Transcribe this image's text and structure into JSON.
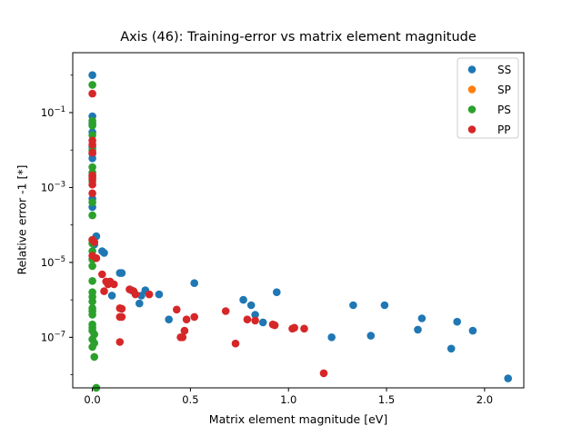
{
  "chart_data": {
    "type": "scatter",
    "title": "Axis (46): Training-error vs matrix element magnitude",
    "xlabel": "Matrix element magnitude [eV]",
    "ylabel": "Relative error -1 [*]",
    "xlim": [
      -0.1,
      2.2
    ],
    "ylim_log10": [
      -8.35,
      0.6
    ],
    "yscale": "log",
    "xticks": [
      0.0,
      0.5,
      1.0,
      1.5,
      2.0
    ],
    "xtick_labels": [
      "0.0",
      "0.5",
      "1.0",
      "1.5",
      "2.0"
    ],
    "yticks_log10": [
      -1,
      -3,
      -5,
      -7
    ],
    "ytick_labels": [
      {
        "base": "10",
        "exp": "−1"
      },
      {
        "base": "10",
        "exp": "−3"
      },
      {
        "base": "10",
        "exp": "−5"
      },
      {
        "base": "10",
        "exp": "−7"
      }
    ],
    "grid": false,
    "legend_position": "top-right",
    "series": [
      {
        "name": "SS",
        "color": "#1f77b4",
        "points": [
          [
            0.0,
            1.0
          ],
          [
            0.0,
            0.08
          ],
          [
            0.0,
            0.05
          ],
          [
            0.0,
            0.03
          ],
          [
            0.0,
            0.012
          ],
          [
            0.0,
            0.008
          ],
          [
            0.0,
            0.006
          ],
          [
            0.0,
            0.002
          ],
          [
            0.0,
            0.0005
          ],
          [
            0.0,
            0.0003
          ],
          [
            0.02,
            5e-05
          ],
          [
            0.01,
            3e-05
          ],
          [
            0.05,
            2e-05
          ],
          [
            0.06,
            1.8e-05
          ],
          [
            0.1,
            1.3e-06
          ],
          [
            0.14,
            5.2e-06
          ],
          [
            0.15,
            5.2e-06
          ],
          [
            0.2,
            1.8e-06
          ],
          [
            0.24,
            8e-07
          ],
          [
            0.25,
            1.3e-06
          ],
          [
            0.27,
            1.8e-06
          ],
          [
            0.34,
            1.4e-06
          ],
          [
            0.39,
            3e-07
          ],
          [
            0.52,
            2.8e-06
          ],
          [
            0.77,
            1e-06
          ],
          [
            0.81,
            7.2e-07
          ],
          [
            0.83,
            4e-07
          ],
          [
            0.87,
            2.5e-07
          ],
          [
            0.94,
            1.6e-06
          ],
          [
            1.22,
            1e-07
          ],
          [
            1.33,
            7.2e-07
          ],
          [
            1.42,
            1.1e-07
          ],
          [
            1.49,
            7.2e-07
          ],
          [
            1.66,
            1.6e-07
          ],
          [
            1.68,
            3.2e-07
          ],
          [
            1.83,
            5e-08
          ],
          [
            1.86,
            2.6e-07
          ],
          [
            1.94,
            1.5e-07
          ],
          [
            2.12,
            8e-09
          ]
        ]
      },
      {
        "name": "SP",
        "color": "#ff7f0e",
        "points": []
      },
      {
        "name": "PS",
        "color": "#2ca02c",
        "points": [
          [
            0.0,
            0.55
          ],
          [
            0.0,
            0.06
          ],
          [
            0.0,
            0.045
          ],
          [
            0.0,
            0.025
          ],
          [
            0.0,
            0.01
          ],
          [
            0.0,
            0.0035
          ],
          [
            0.0,
            0.0025
          ],
          [
            0.0,
            0.0015
          ],
          [
            0.0,
            0.0004
          ],
          [
            0.0,
            0.00018
          ],
          [
            0.0,
            4e-05
          ],
          [
            0.0,
            3.2e-05
          ],
          [
            0.0,
            2e-05
          ],
          [
            0.0,
            1.2e-05
          ],
          [
            0.0,
            8e-06
          ],
          [
            0.0,
            3.2e-06
          ],
          [
            0.0,
            1.6e-06
          ],
          [
            0.0,
            1.2e-06
          ],
          [
            0.0,
            9e-07
          ],
          [
            0.0,
            6e-07
          ],
          [
            0.0,
            5e-07
          ],
          [
            0.0,
            4e-07
          ],
          [
            0.0,
            2.2e-07
          ],
          [
            0.0,
            1.8e-07
          ],
          [
            0.0,
            1.5e-07
          ],
          [
            0.01,
            1.2e-07
          ],
          [
            0.0,
            8.8e-08
          ],
          [
            0.01,
            7e-08
          ],
          [
            0.0,
            5.5e-08
          ],
          [
            0.01,
            3e-08
          ],
          [
            0.02,
            4.5e-09
          ]
        ]
      },
      {
        "name": "PP",
        "color": "#d62728",
        "points": [
          [
            0.0,
            0.32
          ],
          [
            0.0,
            0.018
          ],
          [
            0.0,
            0.014
          ],
          [
            0.0,
            0.0085
          ],
          [
            0.0,
            0.0021
          ],
          [
            0.0,
            0.0017
          ],
          [
            0.0,
            0.0012
          ],
          [
            0.0,
            0.0007
          ],
          [
            0.0,
            4e-05
          ],
          [
            0.01,
            3.5e-05
          ],
          [
            0.0,
            1.5e-05
          ],
          [
            0.02,
            1.3e-05
          ],
          [
            0.05,
            4.8e-06
          ],
          [
            0.07,
            3.1e-06
          ],
          [
            0.08,
            2.6e-06
          ],
          [
            0.09,
            3.1e-06
          ],
          [
            0.06,
            1.7e-06
          ],
          [
            0.11,
            2.6e-06
          ],
          [
            0.14,
            6e-07
          ],
          [
            0.15,
            5.8e-07
          ],
          [
            0.15,
            3.5e-07
          ],
          [
            0.14,
            3.5e-07
          ],
          [
            0.14,
            7.5e-08
          ],
          [
            0.19,
            1.9e-06
          ],
          [
            0.21,
            1.7e-06
          ],
          [
            0.22,
            1.4e-06
          ],
          [
            0.29,
            1.4e-06
          ],
          [
            0.43,
            5.5e-07
          ],
          [
            0.45,
            1e-07
          ],
          [
            0.46,
            1e-07
          ],
          [
            0.47,
            1.5e-07
          ],
          [
            0.48,
            3e-07
          ],
          [
            0.52,
            3.5e-07
          ],
          [
            0.68,
            5e-07
          ],
          [
            0.73,
            6.8e-08
          ],
          [
            0.79,
            3e-07
          ],
          [
            0.83,
            2.8e-07
          ],
          [
            0.92,
            2.2e-07
          ],
          [
            0.93,
            2.1e-07
          ],
          [
            1.02,
            1.7e-07
          ],
          [
            1.03,
            1.8e-07
          ],
          [
            1.08,
            1.7e-07
          ],
          [
            1.18,
            1.1e-08
          ]
        ]
      }
    ]
  }
}
